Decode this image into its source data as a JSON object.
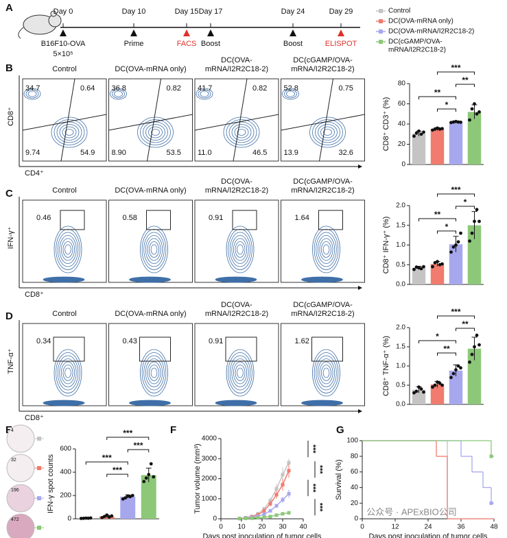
{
  "panel_labels": [
    "A",
    "B",
    "C",
    "D",
    "E",
    "F",
    "G"
  ],
  "timeline": {
    "events": [
      {
        "day": "Day 0",
        "label": "B16F10-OVA",
        "cells": "5×10⁵",
        "color": "#111111"
      },
      {
        "day": "Day 10",
        "label": "Prime",
        "color": "#111111"
      },
      {
        "day": "Day 15",
        "label": "FACS",
        "color": "#e0302a"
      },
      {
        "day": "Day 17",
        "label": "Boost",
        "color": "#111111"
      },
      {
        "day": "Day 24",
        "label": "Boost",
        "color": "#111111"
      },
      {
        "day": "Day 29",
        "label": "ELISPOT",
        "color": "#e0302a"
      }
    ]
  },
  "legend": [
    {
      "lines": [
        "Control"
      ],
      "color": "#c4c4c4"
    },
    {
      "lines": [
        "DC(OVA-mRNA only)"
      ],
      "color": "#f07b6e"
    },
    {
      "lines": [
        "DC(OVA-mRNA/I2R2C18-2)"
      ],
      "color": "#a7a7ee"
    },
    {
      "lines": [
        "DC(cGAMP/OVA-",
        "mRNA/I2R2C18-2)"
      ],
      "color": "#8cc878"
    }
  ],
  "flow_rows": [
    {
      "y_label": "CD8⁺",
      "x_label": "CD4⁺",
      "titles": [
        [
          "Control"
        ],
        [
          "DC(OVA-mRNA only)"
        ],
        [
          "DC(OVA-",
          "mRNA/I2R2C18-2)"
        ],
        [
          "DC(cGAMP/OVA-",
          "mRNA/I2R2C18-2)"
        ]
      ],
      "gates": [
        [
          "34.7",
          "0.64",
          "9.74",
          "54.9"
        ],
        [
          "36.8",
          "0.82",
          "8.90",
          "53.5"
        ],
        [
          "41.7",
          "0.82",
          "11.0",
          "46.5"
        ],
        [
          "52.8",
          "0.75",
          "13.9",
          "32.6"
        ]
      ]
    },
    {
      "y_label": "IFN-γ⁺",
      "x_label": "CD8⁺",
      "titles": [
        [
          "Control"
        ],
        [
          "DC(OVA-mRNA only)"
        ],
        [
          "DC(OVA-",
          "mRNA/I2R2C18-2)"
        ],
        [
          "DC(cGAMP/OVA-",
          "mRNA/I2R2C18-2)"
        ]
      ],
      "gates": [
        [
          "0.46"
        ],
        [
          "0.58"
        ],
        [
          "0.91"
        ],
        [
          "1.64"
        ]
      ]
    },
    {
      "y_label": "TNF-α⁺",
      "x_label": "CD8⁺",
      "titles": [
        [
          "Control"
        ],
        [
          "DC(OVA-mRNA only)"
        ],
        [
          "DC(OVA-",
          "mRNA/I2R2C18-2)"
        ],
        [
          "DC(cGAMP/OVA-",
          "mRNA/I2R2C18-2)"
        ]
      ],
      "gates": [
        [
          "0.34"
        ],
        [
          "0.43"
        ],
        [
          "0.91"
        ],
        [
          "1.62"
        ]
      ]
    }
  ],
  "wells": [
    "4",
    "32",
    "196",
    "472"
  ],
  "watermark": "公众号 · APExBIO公司",
  "chart_data": [
    {
      "type": "bar",
      "y_label": "CD8⁺ CD3⁺ (%)",
      "ylim": [
        0,
        80
      ],
      "yticks": [
        0,
        20,
        40,
        60,
        80
      ],
      "colors": [
        "#c4c4c4",
        "#f07b6e",
        "#a7a7ee",
        "#8cc878"
      ],
      "values": [
        30.5,
        35,
        42,
        52
      ],
      "errors": [
        2.5,
        1.5,
        0.8,
        7
      ],
      "points": [
        [
          28,
          31,
          33,
          30,
          32
        ],
        [
          34,
          35,
          36,
          35,
          35.5
        ],
        [
          41.5,
          42,
          42.5,
          42,
          41.8
        ],
        [
          44,
          55,
          60,
          50,
          52
        ]
      ],
      "annotations": [
        "***",
        "**",
        "**",
        "*"
      ]
    },
    {
      "type": "bar",
      "y_label": "CD8⁺ IFN-γ⁺ (%)",
      "ylim": [
        0,
        2
      ],
      "yticks": [
        {
          "value": 0,
          "label": "0.0"
        },
        0.5,
        {
          "value": 1,
          "label": "1.0"
        },
        1.5,
        {
          "value": 2,
          "label": "2.0"
        }
      ],
      "colors": [
        "#c4c4c4",
        "#f07b6e",
        "#a7a7ee",
        "#8cc878"
      ],
      "values": [
        0.42,
        0.52,
        1.02,
        1.5
      ],
      "errors": [
        0.04,
        0.06,
        0.2,
        0.35
      ],
      "points": [
        [
          0.38,
          0.44,
          0.42,
          0.4,
          0.45
        ],
        [
          0.45,
          0.55,
          0.58,
          0.5,
          0.52
        ],
        [
          0.82,
          0.95,
          1.0,
          1.08,
          1.3
        ],
        [
          1.1,
          1.3,
          1.6,
          1.9,
          1.6
        ]
      ],
      "annotations": [
        "***",
        "*",
        "**",
        "*"
      ]
    },
    {
      "type": "bar",
      "y_label": "CD8⁺ TNF-α⁺ (%)",
      "ylim": [
        0,
        2
      ],
      "yticks": [
        {
          "value": 0,
          "label": "0.0"
        },
        0.5,
        {
          "value": 1,
          "label": "1.0"
        },
        1.5,
        {
          "value": 2,
          "label": "2.0"
        }
      ],
      "colors": [
        "#c4c4c4",
        "#f07b6e",
        "#a7a7ee",
        "#8cc878"
      ],
      "values": [
        0.38,
        0.52,
        0.88,
        1.45
      ],
      "errors": [
        0.08,
        0.08,
        0.15,
        0.3
      ],
      "points": [
        [
          0.3,
          0.34,
          0.45,
          0.4,
          0.32
        ],
        [
          0.45,
          0.5,
          0.58,
          0.55,
          0.5
        ],
        [
          0.7,
          0.8,
          0.9,
          1.0,
          0.95
        ],
        [
          1.1,
          1.3,
          1.5,
          1.8,
          1.55
        ]
      ],
      "annotations": [
        "***",
        "**",
        "*",
        "**"
      ]
    },
    {
      "type": "bar",
      "y_label": "IFN-γ spot counts",
      "ylim": [
        0,
        600
      ],
      "yticks": [
        0,
        200,
        400,
        600
      ],
      "colors": [
        "#c4c4c4",
        "#f07b6e",
        "#a7a7ee",
        "#8cc878"
      ],
      "values": [
        5,
        20,
        190,
        375
      ],
      "errors": [
        3,
        10,
        15,
        60
      ],
      "points": [
        [
          3,
          4,
          6,
          5,
          7
        ],
        [
          10,
          20,
          32,
          15,
          25
        ],
        [
          170,
          180,
          196,
          190,
          200
        ],
        [
          320,
          350,
          380,
          472,
          360
        ]
      ],
      "annotations": [
        "***",
        "***",
        "***",
        "***"
      ]
    },
    {
      "type": "line",
      "y_label": "Tumor volume (mm³)",
      "x_label": "Days post inoculation of tumor cells",
      "xlim": [
        0,
        40
      ],
      "xticks": [
        0,
        10,
        20,
        30,
        40
      ],
      "ylim": [
        0,
        4000
      ],
      "yticks": [
        0,
        1000,
        2000,
        3000,
        4000
      ],
      "x": [
        9,
        12,
        15,
        18,
        21,
        24,
        27,
        30,
        33
      ],
      "series": [
        {
          "color": "#c4c4c4",
          "values": [
            20,
            60,
            120,
            250,
            500,
            900,
            1500,
            2200,
            2800
          ],
          "errors": [
            5,
            15,
            30,
            50,
            80,
            150,
            250,
            350,
            200
          ]
        },
        {
          "color": "#f07b6e",
          "values": [
            20,
            50,
            100,
            200,
            400,
            750,
            1200,
            1700,
            2400
          ],
          "errors": [
            5,
            10,
            25,
            40,
            70,
            120,
            200,
            300,
            350
          ]
        },
        {
          "color": "#a7a7ee",
          "values": [
            15,
            40,
            70,
            120,
            230,
            400,
            650,
            950,
            1250
          ],
          "errors": [
            5,
            10,
            15,
            25,
            40,
            60,
            100,
            150,
            200
          ]
        },
        {
          "color": "#8cc878",
          "values": [
            10,
            20,
            30,
            50,
            80,
            110,
            180,
            250,
            300
          ],
          "errors": [
            3,
            5,
            8,
            10,
            15,
            20,
            30,
            40,
            50
          ]
        }
      ],
      "annotations": [
        "***",
        "***",
        "***",
        "***"
      ]
    },
    {
      "type": "line",
      "step": true,
      "y_label": "Survival (%)",
      "x_label": "Days post inoculation of tumor cells",
      "xlim": [
        0,
        48
      ],
      "xticks": [
        0,
        12,
        24,
        36,
        48
      ],
      "ylim": [
        0,
        100
      ],
      "yticks": [
        0,
        20,
        40,
        60,
        80,
        100
      ],
      "series": [
        {
          "color": "#c4c4c4",
          "x": [
            0,
            31
          ],
          "values": [
            100,
            0
          ]
        },
        {
          "color": "#f07b6e",
          "x": [
            0,
            27,
            31
          ],
          "values": [
            100,
            80,
            0
          ]
        },
        {
          "color": "#a7a7ee",
          "x": [
            0,
            36,
            40,
            44,
            47
          ],
          "values": [
            100,
            80,
            60,
            40,
            20
          ]
        },
        {
          "color": "#8cc878",
          "x": [
            0,
            47
          ],
          "values": [
            100,
            80
          ]
        }
      ]
    }
  ]
}
